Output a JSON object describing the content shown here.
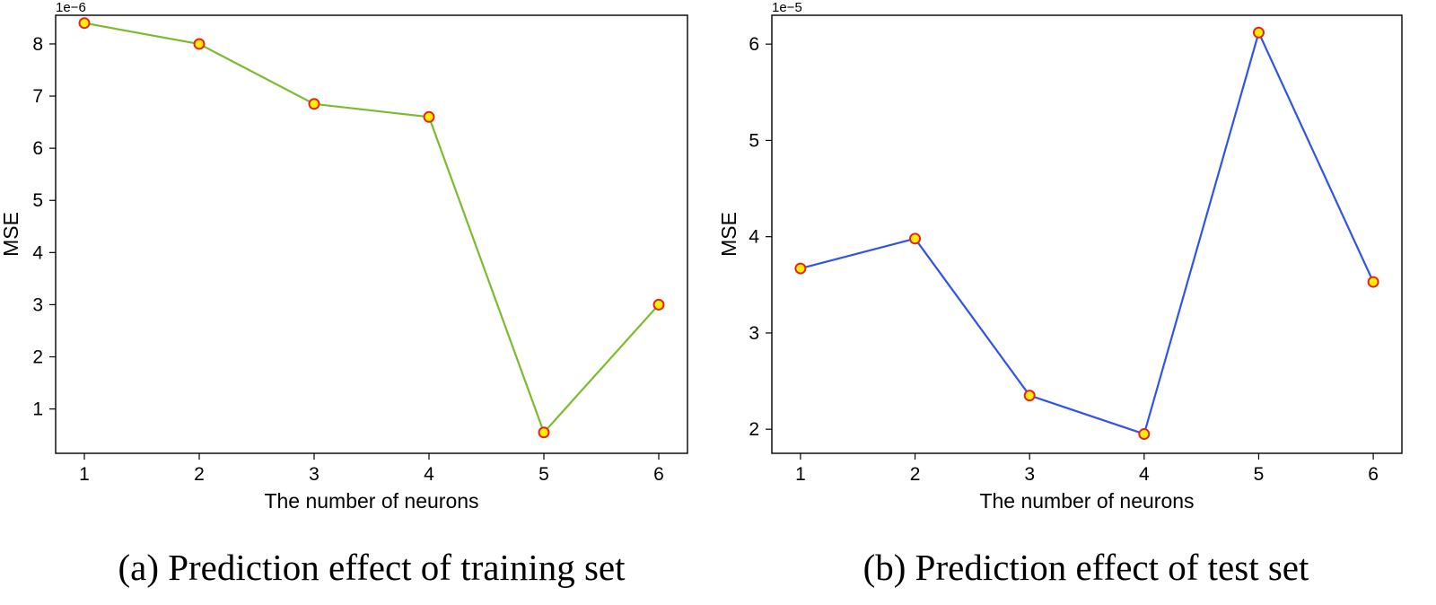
{
  "chart_data": [
    {
      "type": "line",
      "caption": "(a) Prediction effect of training set",
      "xlabel": "The number of neurons",
      "ylabel": "MSE",
      "y_multiplier": "1e−6",
      "x": [
        1,
        2,
        3,
        4,
        5,
        6
      ],
      "xticks": [
        "1",
        "2",
        "3",
        "4",
        "5",
        "6"
      ],
      "yticks": [
        1,
        2,
        3,
        4,
        5,
        6,
        7,
        8
      ],
      "xlim": [
        0.75,
        6.25
      ],
      "ylim": [
        0.15,
        8.55
      ],
      "series": [
        {
          "values": [
            8.4,
            8.0,
            6.85,
            6.6,
            0.55,
            3.0
          ],
          "color": "#7dbb2e"
        }
      ],
      "marker_fill": "#ffee00",
      "marker_edge": "#e8231e",
      "grid": false,
      "legend": "none"
    },
    {
      "type": "line",
      "caption": "(b) Prediction effect of test set",
      "xlabel": "The number of neurons",
      "ylabel": "MSE",
      "y_multiplier": "1e−5",
      "x": [
        1,
        2,
        3,
        4,
        5,
        6
      ],
      "xticks": [
        "1",
        "2",
        "3",
        "4",
        "5",
        "6"
      ],
      "yticks": [
        2,
        3,
        4,
        5,
        6
      ],
      "xlim": [
        0.75,
        6.25
      ],
      "ylim": [
        1.75,
        6.3
      ],
      "series": [
        {
          "values": [
            3.67,
            3.98,
            2.35,
            1.95,
            6.12,
            3.53
          ],
          "color": "#2f54e8"
        }
      ],
      "marker_fill": "#ffee00",
      "marker_edge": "#e8231e",
      "grid": false,
      "legend": "none"
    }
  ]
}
